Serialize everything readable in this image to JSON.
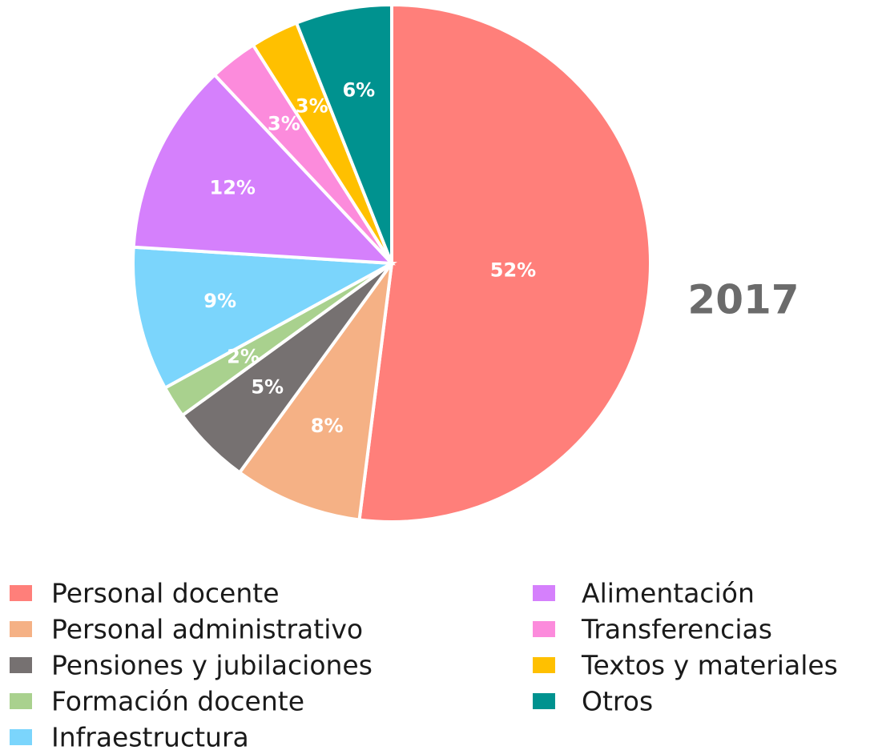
{
  "chart_data": {
    "type": "pie",
    "title": "2017",
    "categories": [
      "Personal docente",
      "Personal administrativo",
      "Pensiones y jubilaciones",
      "Formación docente",
      "Infraestructura",
      "Alimentación",
      "Transferencias",
      "Textos y materiales",
      "Otros"
    ],
    "values": [
      52,
      8,
      5,
      2,
      9,
      12,
      3,
      3,
      6
    ],
    "value_labels": [
      "52%",
      "8%",
      "5%",
      "2%",
      "9%",
      "12%",
      "3%",
      "3%",
      "6%"
    ],
    "colors": [
      "#ff7f7a",
      "#f5b185",
      "#767171",
      "#a9d18e",
      "#7bd5fc",
      "#d580fc",
      "#fc8bdc",
      "#ffc000",
      "#00928f"
    ],
    "legend": "bottom"
  }
}
